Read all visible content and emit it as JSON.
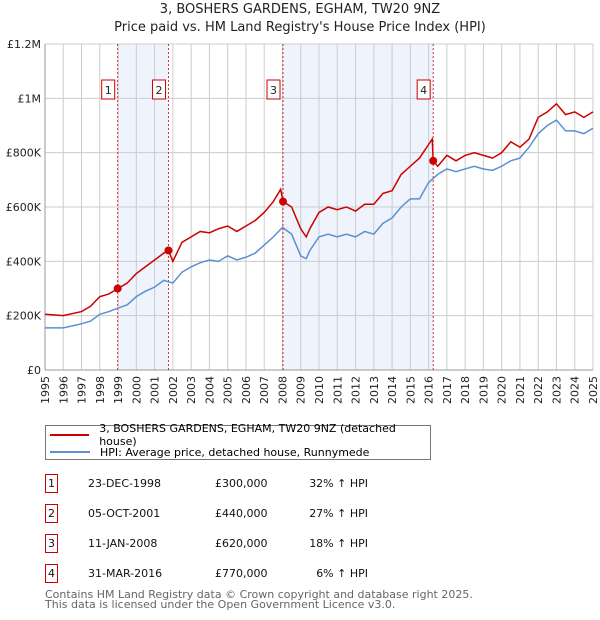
{
  "title": "3, BOSHERS GARDENS, EGHAM, TW20 9NZ",
  "subtitle": "Price paid vs. HM Land Registry's House Price Index (HPI)",
  "chart_data": {
    "type": "line",
    "xlim": [
      1995,
      2025
    ],
    "ylim": [
      0,
      1200000
    ],
    "yticks": [
      {
        "v": 0,
        "label": "£0"
      },
      {
        "v": 200000,
        "label": "£200K"
      },
      {
        "v": 400000,
        "label": "£400K"
      },
      {
        "v": 600000,
        "label": "£600K"
      },
      {
        "v": 800000,
        "label": "£800K"
      },
      {
        "v": 1000000,
        "label": "£1M"
      },
      {
        "v": 1200000,
        "label": "£1.2M"
      }
    ],
    "xticks": [
      "1995",
      "1996",
      "1997",
      "1998",
      "1999",
      "2000",
      "2001",
      "2002",
      "2003",
      "2004",
      "2005",
      "2006",
      "2007",
      "2008",
      "2009",
      "2010",
      "2011",
      "2012",
      "2013",
      "2014",
      "2015",
      "2016",
      "2017",
      "2018",
      "2019",
      "2020",
      "2021",
      "2022",
      "2023",
      "2024",
      "2025"
    ],
    "colors": {
      "property": "#cc0000",
      "hpi": "#5b8fd4",
      "shade": "#eef3fc",
      "grid": "#cccccc"
    },
    "series": [
      {
        "name": "3, BOSHERS GARDENS, EGHAM, TW20 9NZ (detached house)",
        "key": "property",
        "x": [
          1995,
          1996,
          1997,
          1997.5,
          1998,
          1998.5,
          1999,
          1999.5,
          2000,
          2000.5,
          2001,
          2001.5,
          2001.76,
          2002,
          2002.5,
          2003,
          2003.5,
          2004,
          2004.5,
          2005,
          2005.5,
          2006,
          2006.5,
          2007,
          2007.5,
          2007.9,
          2008.03,
          2008.5,
          2009,
          2009.3,
          2009.5,
          2010,
          2010.5,
          2011,
          2011.5,
          2012,
          2012.5,
          2013,
          2013.5,
          2014,
          2014.5,
          2015,
          2015.5,
          2016,
          2016.2,
          2016.25,
          2016.5,
          2017,
          2017.5,
          2018,
          2018.5,
          2019,
          2019.5,
          2020,
          2020.5,
          2021,
          2021.5,
          2022,
          2022.5,
          2023,
          2023.5,
          2024,
          2024.5,
          2025
        ],
        "y": [
          205000,
          200000,
          215000,
          235000,
          270000,
          280000,
          300000,
          320000,
          355000,
          380000,
          405000,
          430000,
          440000,
          400000,
          470000,
          490000,
          510000,
          505000,
          520000,
          530000,
          510000,
          530000,
          550000,
          580000,
          620000,
          665000,
          620000,
          600000,
          520000,
          490000,
          520000,
          580000,
          600000,
          590000,
          600000,
          585000,
          610000,
          610000,
          650000,
          660000,
          720000,
          750000,
          780000,
          830000,
          850000,
          770000,
          750000,
          790000,
          770000,
          790000,
          800000,
          790000,
          780000,
          800000,
          840000,
          820000,
          850000,
          930000,
          950000,
          980000,
          940000,
          950000,
          930000,
          950000
        ]
      },
      {
        "name": "HPI: Average price, detached house, Runnymede",
        "key": "hpi",
        "x": [
          1995,
          1996,
          1997,
          1997.5,
          1998,
          1998.5,
          1999,
          1999.5,
          2000,
          2000.5,
          2001,
          2001.5,
          2002,
          2002.5,
          2003,
          2003.5,
          2004,
          2004.5,
          2005,
          2005.5,
          2006,
          2006.5,
          2007,
          2007.5,
          2008,
          2008.5,
          2009,
          2009.3,
          2009.5,
          2010,
          2010.5,
          2011,
          2011.5,
          2012,
          2012.5,
          2013,
          2013.5,
          2014,
          2014.5,
          2015,
          2015.5,
          2016,
          2016.5,
          2017,
          2017.5,
          2018,
          2018.5,
          2019,
          2019.5,
          2020,
          2020.5,
          2021,
          2021.5,
          2022,
          2022.5,
          2023,
          2023.5,
          2024,
          2024.5,
          2025
        ],
        "y": [
          155000,
          155000,
          170000,
          180000,
          205000,
          215000,
          228000,
          240000,
          270000,
          290000,
          305000,
          330000,
          320000,
          360000,
          380000,
          395000,
          405000,
          400000,
          420000,
          405000,
          415000,
          430000,
          460000,
          490000,
          525000,
          500000,
          420000,
          410000,
          440000,
          490000,
          500000,
          490000,
          500000,
          490000,
          510000,
          500000,
          540000,
          560000,
          600000,
          630000,
          630000,
          690000,
          720000,
          740000,
          730000,
          740000,
          750000,
          740000,
          735000,
          750000,
          770000,
          780000,
          820000,
          870000,
          900000,
          920000,
          880000,
          880000,
          870000,
          890000
        ]
      }
    ],
    "sales": [
      {
        "n": "1",
        "date": "23-DEC-1998",
        "x": 1998.98,
        "price": 300000,
        "price_label": "£300,000",
        "hpi": "32% ↑ HPI"
      },
      {
        "n": "2",
        "date": "05-OCT-2001",
        "x": 2001.76,
        "price": 440000,
        "price_label": "£440,000",
        "hpi": "27% ↑ HPI"
      },
      {
        "n": "3",
        "date": "11-JAN-2008",
        "x": 2008.03,
        "price": 620000,
        "price_label": "£620,000",
        "hpi": "18% ↑ HPI"
      },
      {
        "n": "4",
        "date": "31-MAR-2016",
        "x": 2016.25,
        "price": 770000,
        "price_label": "£770,000",
        "hpi": "6% ↑ HPI"
      }
    ],
    "shaded": [
      [
        1998.98,
        2001.76
      ],
      [
        2008.03,
        2016.25
      ]
    ]
  },
  "footer": {
    "line1": "Contains HM Land Registry data © Crown copyright and database right 2025.",
    "line2": "This data is licensed under the Open Government Licence v3.0."
  }
}
